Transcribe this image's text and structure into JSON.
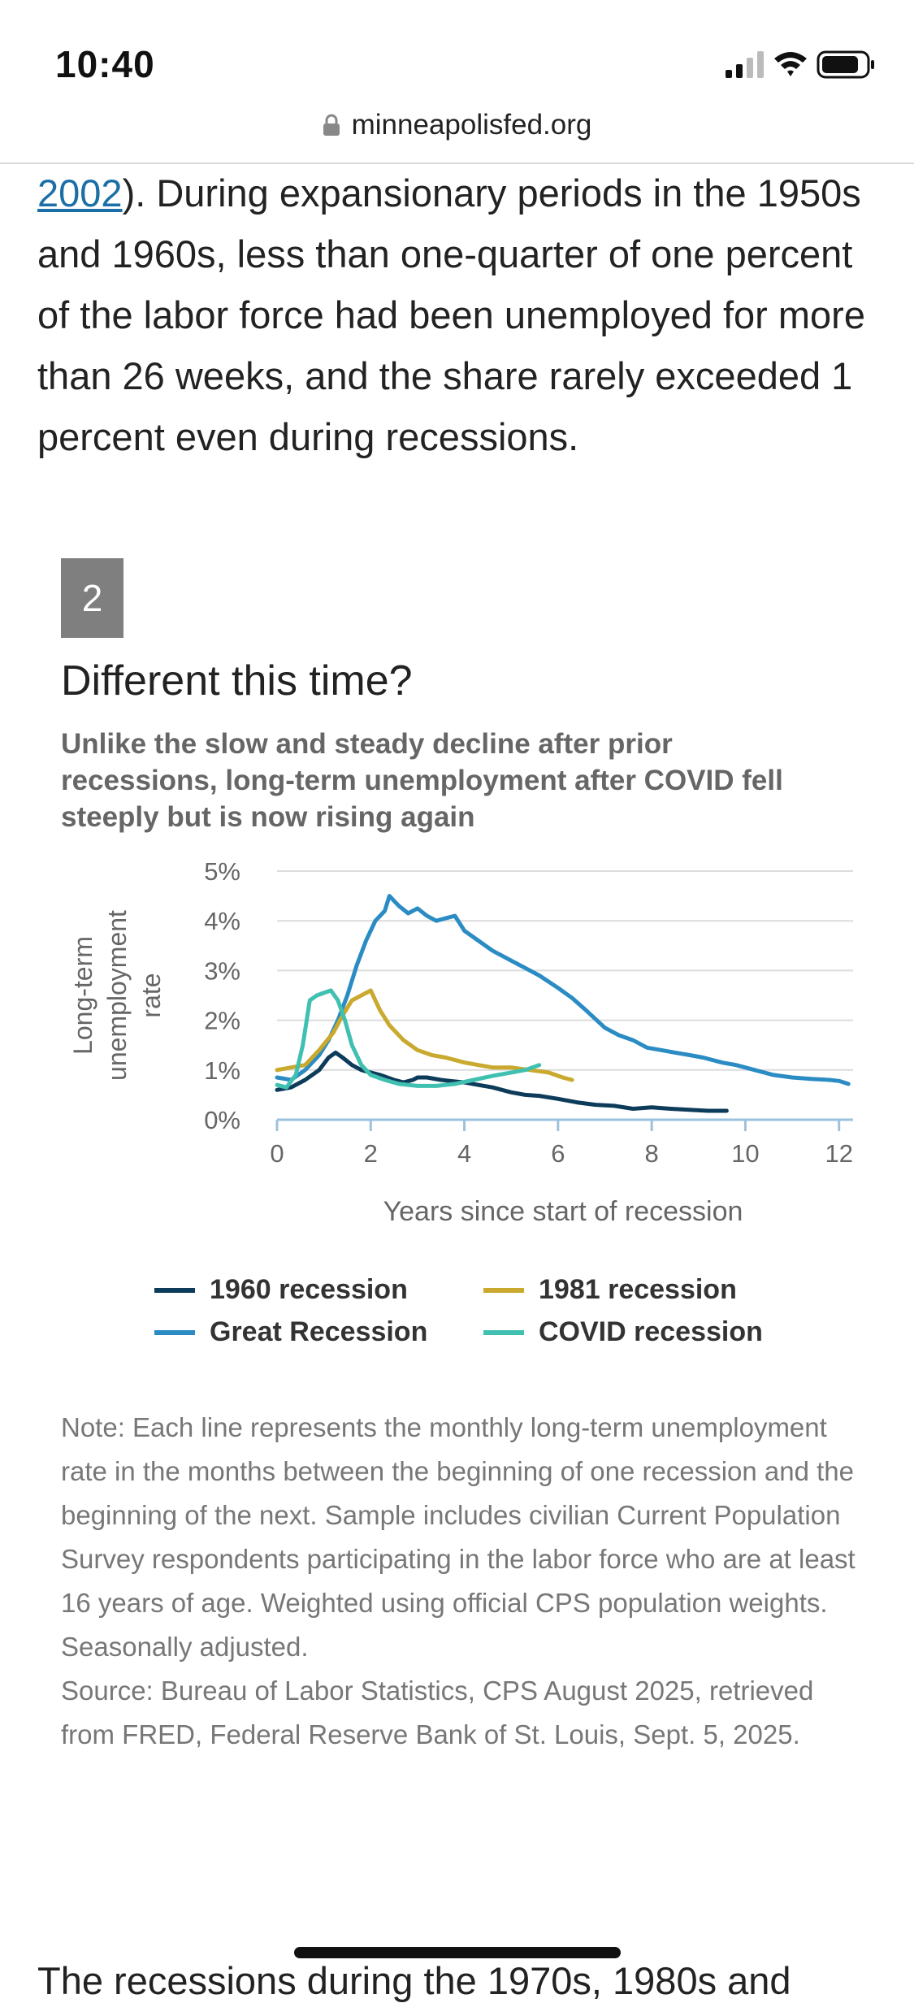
{
  "status_bar": {
    "time": "10:40"
  },
  "browser": {
    "url": "minneapolisfed.org"
  },
  "article": {
    "intro_link": "2002",
    "intro_text": "). During expansionary periods in the 1950s and 1960s, less than one-quarter of one percent of the labor force had been unemployed for more than 26 weeks, and the share rarely exceeded 1 percent even during recessions.",
    "next_paragraph": "The recessions during the 1970s, 1980s and"
  },
  "figure": {
    "number": "2",
    "title": "Different this time?",
    "subtitle": "Unlike the slow and steady decline after prior recessions, long-term unemployment after COVID fell steeply but is now rising again",
    "note": "Note: Each line represents the monthly long-term unemployment rate in the months between the beginning of one recession and the beginning of the next. Sample includes civilian Current Population Survey respondents participating in the labor force who are at least 16 years of age. Weighted using official CPS population weights. Seasonally adjusted.",
    "source": "Source: Bureau of Labor Statistics, CPS August 2025, retrieved from FRED, Federal Reserve Bank of St. Louis, Sept. 5, 2025."
  },
  "chart_data": {
    "type": "line",
    "xlabel": "Years since start of recession",
    "ylabel": "Long-term unemployment rate",
    "xlim": [
      0,
      12.3
    ],
    "ylim": [
      0,
      5
    ],
    "x_ticks": [
      0,
      2,
      4,
      6,
      8,
      10,
      12
    ],
    "y_ticks": [
      0,
      1,
      2,
      3,
      4,
      5
    ],
    "y_tick_labels": [
      "0%",
      "1%",
      "2%",
      "3%",
      "4%",
      "5%"
    ],
    "grid": "horizontal",
    "legend_position": "bottom",
    "series": [
      {
        "name": "1960 recession",
        "color": "#0d3b5a",
        "points": [
          [
            0,
            0.6
          ],
          [
            0.3,
            0.65
          ],
          [
            0.6,
            0.8
          ],
          [
            0.9,
            1.0
          ],
          [
            1.1,
            1.25
          ],
          [
            1.25,
            1.35
          ],
          [
            1.4,
            1.25
          ],
          [
            1.6,
            1.1
          ],
          [
            1.8,
            1.0
          ],
          [
            2.0,
            0.95
          ],
          [
            2.2,
            0.9
          ],
          [
            2.5,
            0.8
          ],
          [
            2.7,
            0.75
          ],
          [
            2.9,
            0.8
          ],
          [
            3.0,
            0.85
          ],
          [
            3.2,
            0.85
          ],
          [
            3.5,
            0.8
          ],
          [
            3.7,
            0.78
          ],
          [
            4.0,
            0.75
          ],
          [
            4.3,
            0.7
          ],
          [
            4.6,
            0.65
          ],
          [
            5.0,
            0.55
          ],
          [
            5.3,
            0.5
          ],
          [
            5.6,
            0.48
          ],
          [
            6.0,
            0.42
          ],
          [
            6.4,
            0.35
          ],
          [
            6.8,
            0.3
          ],
          [
            7.2,
            0.28
          ],
          [
            7.6,
            0.22
          ],
          [
            8.0,
            0.25
          ],
          [
            8.4,
            0.22
          ],
          [
            8.8,
            0.2
          ],
          [
            9.2,
            0.18
          ],
          [
            9.6,
            0.18
          ]
        ]
      },
      {
        "name": "Great Recession",
        "color": "#2b8cc4",
        "points": [
          [
            0,
            0.85
          ],
          [
            0.3,
            0.8
          ],
          [
            0.6,
            1.0
          ],
          [
            0.9,
            1.3
          ],
          [
            1.1,
            1.6
          ],
          [
            1.3,
            2.0
          ],
          [
            1.5,
            2.5
          ],
          [
            1.7,
            3.1
          ],
          [
            1.9,
            3.6
          ],
          [
            2.1,
            4.0
          ],
          [
            2.3,
            4.2
          ],
          [
            2.4,
            4.5
          ],
          [
            2.6,
            4.3
          ],
          [
            2.8,
            4.15
          ],
          [
            3.0,
            4.25
          ],
          [
            3.2,
            4.1
          ],
          [
            3.4,
            4.0
          ],
          [
            3.6,
            4.05
          ],
          [
            3.8,
            4.1
          ],
          [
            4.0,
            3.8
          ],
          [
            4.3,
            3.6
          ],
          [
            4.6,
            3.4
          ],
          [
            5.0,
            3.2
          ],
          [
            5.3,
            3.05
          ],
          [
            5.6,
            2.9
          ],
          [
            6.0,
            2.65
          ],
          [
            6.3,
            2.45
          ],
          [
            6.6,
            2.2
          ],
          [
            7.0,
            1.85
          ],
          [
            7.3,
            1.7
          ],
          [
            7.6,
            1.6
          ],
          [
            7.9,
            1.45
          ],
          [
            8.2,
            1.4
          ],
          [
            8.5,
            1.35
          ],
          [
            8.8,
            1.3
          ],
          [
            9.1,
            1.25
          ],
          [
            9.5,
            1.15
          ],
          [
            9.8,
            1.1
          ],
          [
            10.2,
            1.0
          ],
          [
            10.6,
            0.9
          ],
          [
            11.0,
            0.85
          ],
          [
            11.4,
            0.82
          ],
          [
            11.8,
            0.8
          ],
          [
            12.0,
            0.78
          ],
          [
            12.2,
            0.72
          ]
        ]
      },
      {
        "name": "1981 recession",
        "color": "#c9a92e",
        "points": [
          [
            0,
            1.0
          ],
          [
            0.3,
            1.05
          ],
          [
            0.6,
            1.1
          ],
          [
            0.9,
            1.4
          ],
          [
            1.2,
            1.75
          ],
          [
            1.4,
            2.1
          ],
          [
            1.6,
            2.4
          ],
          [
            1.8,
            2.5
          ],
          [
            2.0,
            2.6
          ],
          [
            2.2,
            2.2
          ],
          [
            2.4,
            1.9
          ],
          [
            2.7,
            1.6
          ],
          [
            3.0,
            1.4
          ],
          [
            3.3,
            1.3
          ],
          [
            3.6,
            1.25
          ],
          [
            4.0,
            1.15
          ],
          [
            4.3,
            1.1
          ],
          [
            4.6,
            1.05
          ],
          [
            5.0,
            1.05
          ],
          [
            5.4,
            1.0
          ],
          [
            5.8,
            0.95
          ],
          [
            6.1,
            0.85
          ],
          [
            6.3,
            0.8
          ]
        ]
      },
      {
        "name": "COVID recession",
        "color": "#40c0b0",
        "points": [
          [
            0,
            0.7
          ],
          [
            0.2,
            0.65
          ],
          [
            0.4,
            0.9
          ],
          [
            0.55,
            1.5
          ],
          [
            0.7,
            2.4
          ],
          [
            0.85,
            2.5
          ],
          [
            1.0,
            2.55
          ],
          [
            1.15,
            2.6
          ],
          [
            1.3,
            2.4
          ],
          [
            1.45,
            2.0
          ],
          [
            1.6,
            1.5
          ],
          [
            1.8,
            1.1
          ],
          [
            2.0,
            0.9
          ],
          [
            2.3,
            0.8
          ],
          [
            2.6,
            0.72
          ],
          [
            3.0,
            0.68
          ],
          [
            3.4,
            0.68
          ],
          [
            3.8,
            0.72
          ],
          [
            4.2,
            0.8
          ],
          [
            4.6,
            0.88
          ],
          [
            5.0,
            0.95
          ],
          [
            5.3,
            1.0
          ],
          [
            5.6,
            1.1
          ]
        ]
      }
    ]
  }
}
